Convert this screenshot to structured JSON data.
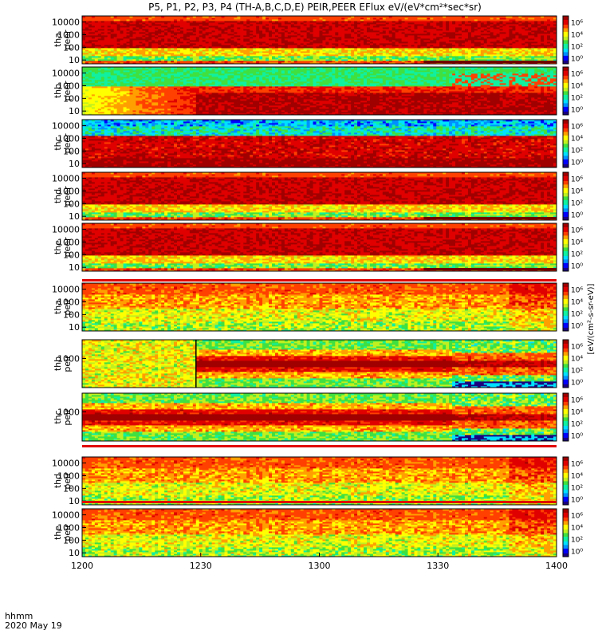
{
  "title": "P5, P1, P2, P3, P4 (TH-A,B,C,D,E) PEIR,PEER EFlux eV/(eV*cm²*sec*sr)",
  "colors": {
    "background": "#ffffff",
    "cmap": [
      "#1a0080",
      "#0000ff",
      "#0090ff",
      "#00e0ff",
      "#10f0a0",
      "#40e040",
      "#c0f020",
      "#ffff00",
      "#ffa000",
      "#ff4000",
      "#e00000",
      "#a00000"
    ]
  },
  "chart_data": {
    "type": "heatmap",
    "x_label_left": "hhmm",
    "date_label": "2020 May 19",
    "x_ticks": [
      "1200",
      "1230",
      "1300",
      "1330",
      "1400"
    ],
    "x_range": [
      "12:00",
      "14:00"
    ],
    "colorbar_label": "[eV/(cm²-s-sr-eV)]",
    "colorbar_ticks": [
      "10⁰",
      "10²",
      "10⁴",
      "10⁶"
    ],
    "panels": [
      {
        "id": "tha-peer",
        "label": [
          "tha",
          "peer"
        ],
        "yticks": [
          "10",
          "100",
          "1000",
          "10000"
        ],
        "ylog": true,
        "ylim": [
          5,
          30000
        ],
        "profile": "electron",
        "bottom_bar": true
      },
      {
        "id": "thb-peer",
        "label": [
          "thb",
          "peer"
        ],
        "yticks": [
          "10",
          "100",
          "1000",
          "10000"
        ],
        "ylog": true,
        "ylim": [
          5,
          30000
        ],
        "profile": "electron_b"
      },
      {
        "id": "thc-peer",
        "label": [
          "thc",
          "peer"
        ],
        "yticks": [
          "10",
          "100",
          "1000",
          "10000"
        ],
        "ylog": true,
        "ylim": [
          5,
          30000
        ],
        "profile": "electron_c"
      },
      {
        "id": "thd-peer",
        "label": [
          "thd",
          "peer"
        ],
        "yticks": [
          "10",
          "100",
          "1000",
          "10000"
        ],
        "ylog": true,
        "ylim": [
          5,
          30000
        ],
        "profile": "electron",
        "bottom_bar": true
      },
      {
        "id": "the-peer",
        "label": [
          "the",
          "peer"
        ],
        "yticks": [
          "10",
          "100",
          "1000",
          "10000"
        ],
        "ylog": true,
        "ylim": [
          5,
          30000
        ],
        "profile": "electron",
        "bottom_bar": true
      },
      {
        "id": "tha-peir",
        "label": [
          "tha",
          "peir"
        ],
        "yticks": [
          "10",
          "100",
          "1000",
          "10000"
        ],
        "ylog": true,
        "ylim": [
          5,
          30000
        ],
        "profile": "ion"
      },
      {
        "id": "thb-peir",
        "label": [
          "thb",
          "peir"
        ],
        "yticks": [
          "1000"
        ],
        "ylog": true,
        "ylim": [
          5,
          30000
        ],
        "profile": "ion_band",
        "band_end": 0.78,
        "switch_x": 0.24
      },
      {
        "id": "thc-peir",
        "label": [
          "thc",
          "peir"
        ],
        "yticks": [
          "1000"
        ],
        "ylog": true,
        "ylim": [
          5,
          30000
        ],
        "profile": "ion_band",
        "band_end": 0.78
      },
      {
        "id": "thd-peir",
        "label": [
          "thd",
          "peir"
        ],
        "yticks": [
          "10",
          "100",
          "1000",
          "10000"
        ],
        "ylog": true,
        "ylim": [
          5,
          30000
        ],
        "profile": "ion"
      },
      {
        "id": "the-peir",
        "label": [
          "the",
          "peir"
        ],
        "yticks": [
          "10",
          "100",
          "1000",
          "10000"
        ],
        "ylog": true,
        "ylim": [
          5,
          30000
        ],
        "profile": "ion"
      }
    ]
  }
}
